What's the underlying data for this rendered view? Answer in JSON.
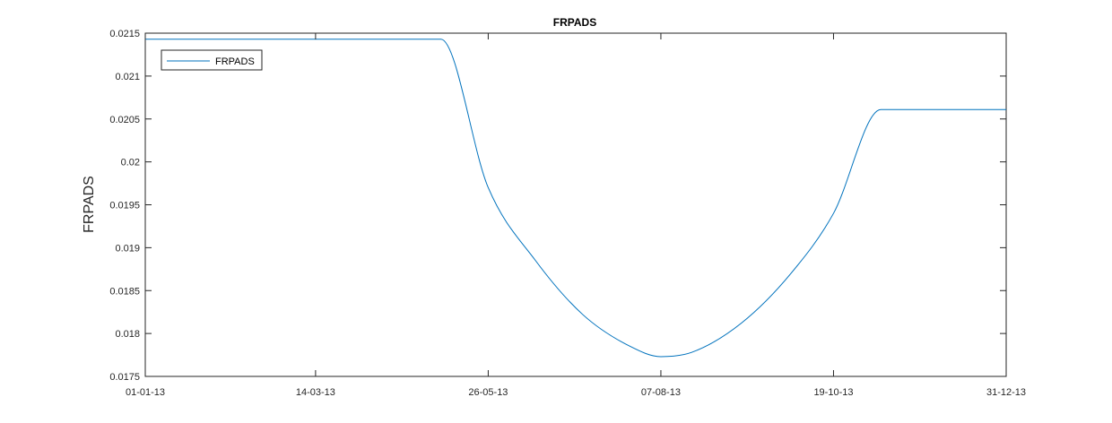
{
  "chart_data": {
    "type": "line",
    "title": "FRPADS",
    "xlabel": "",
    "ylabel": "FRPADS",
    "xlim": [
      "2013-01-01",
      "2013-12-31"
    ],
    "ylim": [
      0.0175,
      0.0215
    ],
    "x_ticks": [
      "2013-01-01",
      "2013-03-14",
      "2013-05-26",
      "2013-08-07",
      "2013-10-19",
      "2013-12-31"
    ],
    "x_tick_labels": [
      "01-01-13",
      "14-03-13",
      "26-05-13",
      "07-08-13",
      "19-10-13",
      "31-12-13"
    ],
    "y_ticks": [
      0.0175,
      0.018,
      0.0185,
      0.019,
      0.0195,
      0.02,
      0.0205,
      0.021,
      0.0215
    ],
    "y_tick_labels": [
      "0.0175",
      "0.018",
      "0.0185",
      "0.019",
      "0.0195",
      "0.02",
      "0.0205",
      "0.021",
      "0.0215"
    ],
    "grid": false,
    "legend": {
      "position": "top-left",
      "entries": [
        "FRPADS"
      ]
    },
    "line_color": "#0072BD",
    "series": [
      {
        "name": "FRPADS",
        "x": [
          "2013-01-01",
          "2013-02-15",
          "2013-04-01",
          "2013-05-06",
          "2013-05-26",
          "2013-06-15",
          "2013-07-05",
          "2013-07-25",
          "2013-08-07",
          "2013-08-20",
          "2013-09-10",
          "2013-10-01",
          "2013-10-19",
          "2013-11-08",
          "2013-12-01",
          "2013-12-31"
        ],
        "y": [
          0.02143,
          0.02143,
          0.02143,
          0.02143,
          0.0197,
          0.01885,
          0.01822,
          0.01785,
          0.01773,
          0.01778,
          0.01812,
          0.0187,
          0.0194,
          0.02061,
          0.02061,
          0.02061
        ]
      }
    ]
  }
}
